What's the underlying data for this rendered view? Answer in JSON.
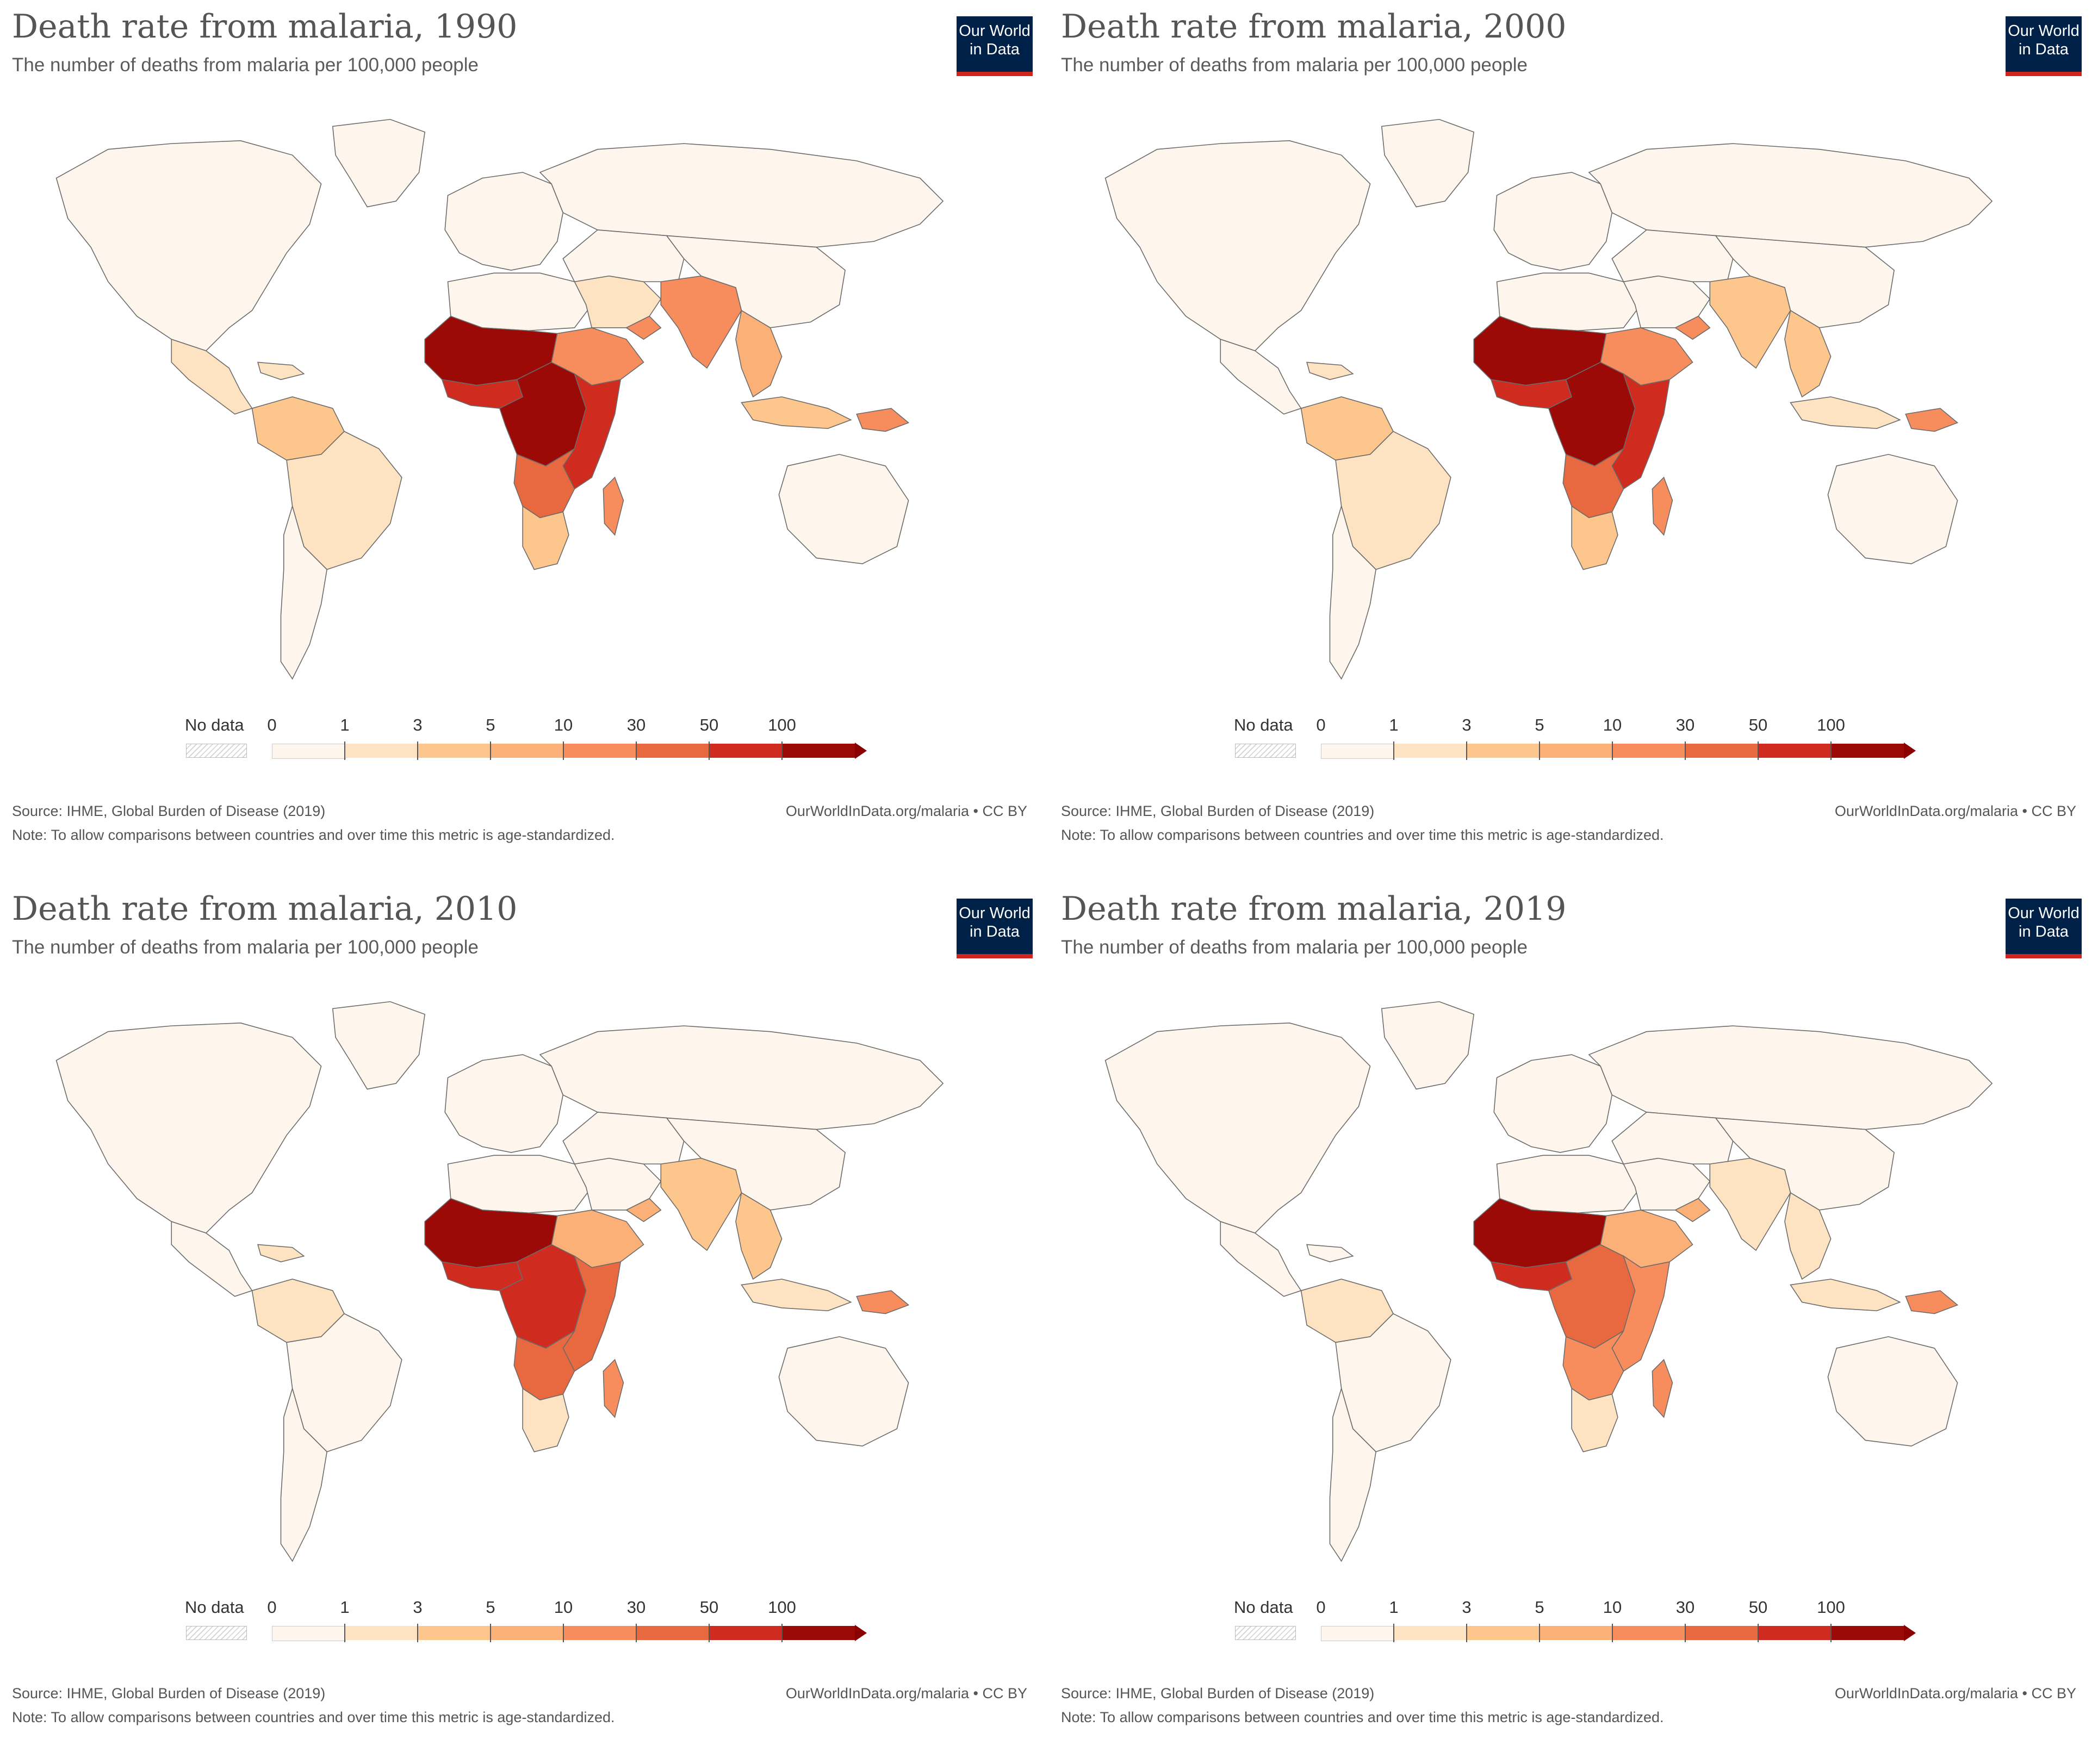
{
  "panels": [
    {
      "year": "1990",
      "title": "Death rate from malaria, 1990",
      "subtitle": "The number of deaths from malaria per 100,000 people",
      "logo": [
        "Our World",
        "in Data"
      ],
      "legend": {
        "no_data": "No data",
        "ticks": [
          "0",
          "1",
          "3",
          "5",
          "10",
          "30",
          "50",
          "100"
        ]
      },
      "source": "Source: IHME, Global Burden of Disease (2019)",
      "note": "Note: To allow comparisons between countries and over time this metric is age-standardized.",
      "credit": "OurWorldInData.org/malaria • CC BY",
      "regions": {
        "north_america": 0,
        "greenland": 0,
        "central_america": 1,
        "caribbean": 1,
        "north_south_america": 3,
        "brazil": 1,
        "southern_south_america": 0,
        "europe": 0,
        "russia": 0,
        "north_africa": 0,
        "sahel_west_africa": 100,
        "west_coast_africa": 50,
        "central_africa": 100,
        "horn_of_africa": 10,
        "east_africa": 50,
        "southern_africa_upper": 30,
        "southern_africa": 3,
        "madagascar": 10,
        "middle_east": 1,
        "arabia_south": 10,
        "central_asia": 0,
        "south_asia": 10,
        "china": 0,
        "southeast_asia": 5,
        "indonesia": 3,
        "papua": 10,
        "australia": 0
      }
    },
    {
      "year": "2000",
      "title": "Death rate from malaria, 2000",
      "subtitle": "The number of deaths from malaria per 100,000 people",
      "logo": [
        "Our World",
        "in Data"
      ],
      "legend": {
        "no_data": "No data",
        "ticks": [
          "0",
          "1",
          "3",
          "5",
          "10",
          "30",
          "50",
          "100"
        ]
      },
      "source": "Source: IHME, Global Burden of Disease (2019)",
      "note": "Note: To allow comparisons between countries and over time this metric is age-standardized.",
      "credit": "OurWorldInData.org/malaria • CC BY",
      "regions": {
        "north_america": 0,
        "greenland": 0,
        "central_america": 0,
        "caribbean": 1,
        "north_south_america": 3,
        "brazil": 1,
        "southern_south_america": 0,
        "europe": 0,
        "russia": 0,
        "north_africa": 0,
        "sahel_west_africa": 100,
        "west_coast_africa": 50,
        "central_africa": 100,
        "horn_of_africa": 10,
        "east_africa": 50,
        "southern_africa_upper": 30,
        "southern_africa": 3,
        "madagascar": 10,
        "middle_east": 0,
        "arabia_south": 10,
        "central_asia": 0,
        "south_asia": 3,
        "china": 0,
        "southeast_asia": 3,
        "indonesia": 1,
        "papua": 10,
        "australia": 0
      }
    },
    {
      "year": "2010",
      "title": "Death rate from malaria, 2010",
      "subtitle": "The number of deaths from malaria per 100,000 people",
      "logo": [
        "Our World",
        "in Data"
      ],
      "legend": {
        "no_data": "No data",
        "ticks": [
          "0",
          "1",
          "3",
          "5",
          "10",
          "30",
          "50",
          "100"
        ]
      },
      "source": "Source: IHME, Global Burden of Disease (2019)",
      "note": "Note: To allow comparisons between countries and over time this metric is age-standardized.",
      "credit": "OurWorldInData.org/malaria • CC BY",
      "regions": {
        "north_america": 0,
        "greenland": 0,
        "central_america": 0,
        "caribbean": 1,
        "north_south_america": 1,
        "brazil": 0,
        "southern_south_america": 0,
        "europe": 0,
        "russia": 0,
        "north_africa": 0,
        "sahel_west_africa": 100,
        "west_coast_africa": 50,
        "central_africa": 50,
        "horn_of_africa": 5,
        "east_africa": 30,
        "southern_africa_upper": 30,
        "southern_africa": 1,
        "madagascar": 10,
        "middle_east": 0,
        "arabia_south": 5,
        "central_asia": 0,
        "south_asia": 3,
        "china": 0,
        "southeast_asia": 3,
        "indonesia": 1,
        "papua": 10,
        "australia": 0
      }
    },
    {
      "year": "2019",
      "title": "Death rate from malaria, 2019",
      "subtitle": "The number of deaths from malaria per 100,000 people",
      "logo": [
        "Our World",
        "in Data"
      ],
      "legend": {
        "no_data": "No data",
        "ticks": [
          "0",
          "1",
          "3",
          "5",
          "10",
          "30",
          "50",
          "100"
        ]
      },
      "source": "Source: IHME, Global Burden of Disease (2019)",
      "note": "Note: To allow comparisons between countries and over time this metric is age-standardized.",
      "credit": "OurWorldInData.org/malaria • CC BY",
      "regions": {
        "north_america": 0,
        "greenland": 0,
        "central_america": 0,
        "caribbean": 0,
        "north_south_america": 1,
        "brazil": 0,
        "southern_south_america": 0,
        "europe": 0,
        "russia": 0,
        "north_africa": 0,
        "sahel_west_africa": 100,
        "west_coast_africa": 50,
        "central_africa": 30,
        "horn_of_africa": 5,
        "east_africa": 10,
        "southern_africa_upper": 10,
        "southern_africa": 1,
        "madagascar": 10,
        "middle_east": 0,
        "arabia_south": 5,
        "central_asia": 0,
        "south_asia": 1,
        "china": 0,
        "southeast_asia": 1,
        "indonesia": 1,
        "papua": 10,
        "australia": 0
      }
    }
  ],
  "scale_colors": {
    "nodata": "#e8e8e8",
    "0": "#fef6ec",
    "1": "#fde3c1",
    "3": "#fdc68c",
    "5": "#fbb077",
    "10": "#f78d5d",
    "30": "#e8683f",
    "50": "#cf2b1e",
    "100": "#9b0a07"
  }
}
